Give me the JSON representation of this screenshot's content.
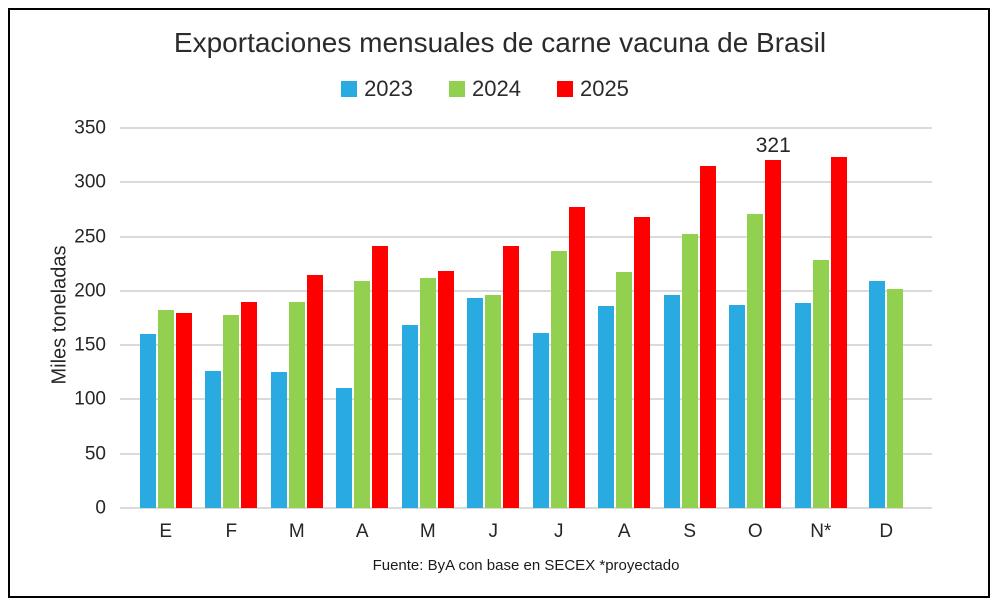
{
  "title": "Exportaciones mensuales de carne vacuna de Brasil",
  "footer": "Fuente: ByA con base en SECEX *proyectado",
  "y_axis": {
    "title": "Miles toneladas",
    "ticks": [
      350,
      300,
      250,
      200,
      150,
      100,
      50,
      0
    ]
  },
  "colors": {
    "series_2023": "#29ABE2",
    "series_2024": "#92D050",
    "series_2025": "#FE0000",
    "gridline": "#DADADA",
    "text": "#262626",
    "frame_border": "#000000"
  },
  "chart_data": {
    "type": "bar",
    "title": "Exportaciones mensuales de carne vacuna de Brasil",
    "categories": [
      "E",
      "F",
      "M",
      "A",
      "M",
      "J",
      "J",
      "A",
      "S",
      "O",
      "N*",
      "D"
    ],
    "series": [
      {
        "name": "2023",
        "color": "#29ABE2",
        "values": [
          160,
          126,
          125,
          111,
          169,
          193,
          161,
          186,
          196,
          187,
          189,
          209
        ]
      },
      {
        "name": "2024",
        "color": "#92D050",
        "values": [
          182,
          178,
          190,
          209,
          212,
          196,
          237,
          217,
          252,
          271,
          228,
          202
        ]
      },
      {
        "name": "2025",
        "color": "#FE0000",
        "values": [
          180,
          190,
          215,
          241,
          218,
          241,
          277,
          268,
          315,
          321,
          323,
          null
        ]
      }
    ],
    "ylabel": "Miles toneladas",
    "xlabel": "",
    "ylim": [
      0,
      350
    ],
    "ytick_step": 50,
    "grid": true,
    "legend_position": "top",
    "annotations": [
      {
        "series": "2025",
        "category_index": 9,
        "text": "321"
      }
    ],
    "source_note": "Fuente: ByA con base en SECEX *proyectado"
  }
}
